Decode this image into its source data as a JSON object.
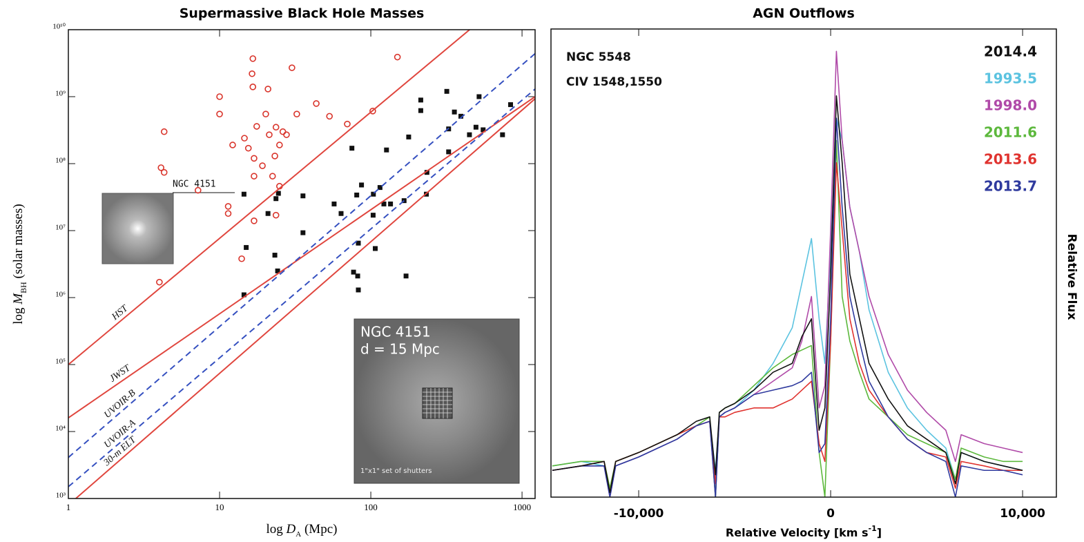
{
  "chart_data": [
    {
      "type": "scatter",
      "title": "Supermassive Black Hole Masses",
      "xlabel_parts": [
        "log ",
        "D",
        "A",
        " (Mpc)"
      ],
      "ylabel_parts": [
        "log ",
        "M",
        "BH",
        " (solar masses)"
      ],
      "xlog": true,
      "ylog": true,
      "xlim": [
        1,
        1220
      ],
      "ylim": [
        1000,
        10000000000.0
      ],
      "xticks": [
        1,
        10,
        100,
        1000
      ],
      "yticks": [
        {
          "value": 1000,
          "label": "10³"
        },
        {
          "value": 10000,
          "label": "10⁴"
        },
        {
          "value": 100000,
          "label": "10⁵"
        },
        {
          "value": 1000000,
          "label": "10⁶"
        },
        {
          "value": 10000000,
          "label": "10⁷"
        },
        {
          "value": 100000000,
          "label": "10⁸"
        },
        {
          "value": 1000000000,
          "label": "10⁹"
        },
        {
          "value": 10000000000,
          "label": "10¹⁰"
        }
      ],
      "series": [
        {
          "style": "points",
          "marker": "open-circle",
          "color": "#d9342b",
          "x": [
            4.3,
            4.1,
            4.3,
            4.0,
            7.2,
            10,
            10,
            11.4,
            11.4,
            12.2,
            14.6,
            14,
            15.5,
            16.6,
            16.4,
            16.6,
            17.6,
            16.9,
            16.9,
            16.9,
            19.2,
            20.2,
            20.9,
            21.3,
            22.4,
            23.2,
            23.6,
            24.9,
            26.2,
            27.7,
            23.6,
            24.9,
            30.1,
            32.4,
            43.6,
            53.3,
            69.9,
            103,
            150
          ],
          "values": [
            300000000.0,
            87000000.0,
            74000000.0,
            1700000.0,
            40000000.0,
            1000000000.0,
            550000000.0,
            23000000.0,
            18000000.0,
            190000000.0,
            240000000.0,
            3800000.0,
            170000000.0,
            3700000000.0,
            2200000000.0,
            1400000000.0,
            360000000.0,
            120000000.0,
            65000000.0,
            14000000.0,
            93000000.0,
            550000000.0,
            1300000000.0,
            270000000.0,
            65000000.0,
            130000000.0,
            350000000.0,
            190000000.0,
            300000000.0,
            270000000.0,
            17000000.0,
            46000000.0,
            2700000000.0,
            550000000.0,
            790000000.0,
            510000000.0,
            390000000.0,
            610000000.0,
            3900000000.0
          ]
        },
        {
          "style": "points",
          "marker": "square",
          "color": "#111111",
          "x": [
            14.5,
            15.0,
            14.5,
            20.9,
            23.2,
            23.6,
            24.5,
            24.2,
            35.6,
            35.6,
            57.2,
            63.6,
            76.9,
            75.0,
            80.7,
            86.8,
            81.9,
            82.7,
            82.7,
            103.6,
            104,
            107,
            115,
            122,
            127,
            135,
            166,
            171,
            178,
            214,
            214,
            233,
            235,
            318,
            327,
            327,
            357,
            394,
            449,
            496,
            520,
            553,
            743,
            840
          ],
          "values": [
            35000000.0,
            5600000.0,
            1100000.0,
            18000000.0,
            4300000.0,
            30000000.0,
            36000000.0,
            2500000.0,
            33000000.0,
            9300000.0,
            25000000.0,
            18000000.0,
            2400000.0,
            170000000.0,
            34000000.0,
            48000000.0,
            2100000.0,
            1300000.0,
            6500000.0,
            17000000.0,
            35000000.0,
            5400000.0,
            44000000.0,
            25000000.0,
            160000000.0,
            25000000.0,
            28000000.0,
            2100000.0,
            250000000.0,
            620000000.0,
            890000000.0,
            35000000.0,
            74000000.0,
            1200000000.0,
            330000000.0,
            150000000.0,
            590000000.0,
            510000000.0,
            270000000.0,
            350000000.0,
            1000000000.0,
            320000000.0,
            270000000.0,
            760000000.0
          ]
        },
        {
          "style": "line",
          "name": "HST",
          "color": "#e0463e",
          "dashed": false,
          "x": [
            1,
            450
          ],
          "values": [
            100000.0,
            10000000000.0
          ]
        },
        {
          "style": "line",
          "name": "JWST",
          "color": "#e0463e",
          "dashed": false,
          "x": [
            1,
            1220
          ],
          "values": [
            16000.0,
            1000000000.0
          ]
        },
        {
          "style": "line",
          "name": "UVOIR-B",
          "color": "#3550c0",
          "dashed": true,
          "x": [
            1,
            1220
          ],
          "values": [
            4100.0,
            4400000000.0
          ]
        },
        {
          "style": "line",
          "name": "UVOIR-A",
          "color": "#3550c0",
          "dashed": true,
          "x": [
            1,
            1220
          ],
          "values": [
            1500.0,
            1300000000.0
          ]
        },
        {
          "style": "line",
          "name": "30-m ELT",
          "color": "#e0463e",
          "dashed": false,
          "x": [
            1.12,
            1220
          ],
          "values": [
            1000.0,
            930000000.0
          ]
        }
      ],
      "annotations": [
        "NGC 4151",
        "NGC 4151",
        "d = 15 Mpc",
        "1\"x1\" set of shutters"
      ]
    },
    {
      "type": "line",
      "title": "AGN Outflows",
      "xlabel_parts": [
        "Relative Velocity [km s",
        "-1",
        "]"
      ],
      "ylabel": "Relative Flux",
      "xlog": false,
      "ylog": false,
      "xlim": [
        -14570,
        11760
      ],
      "ylim": [
        0,
        10.5
      ],
      "xticks": [
        {
          "value": -10000,
          "label": "-10,000"
        },
        0,
        {
          "value": 10000,
          "label": "10,000"
        }
      ],
      "x": [
        -14500,
        -13000,
        -11800,
        -11500,
        -11200,
        -10000,
        -8000,
        -7000,
        -6300,
        -6000,
        -5800,
        -5500,
        -5000,
        -4000,
        -3000,
        -2000,
        -1500,
        -1000,
        -600,
        -300,
        0,
        300,
        600,
        1000,
        1500,
        2000,
        3000,
        4000,
        5000,
        6000,
        6500,
        6800,
        8000,
        9000,
        10000
      ],
      "series": [
        {
          "name": "1993.5",
          "color": "#5bc3e0",
          "values": [
            0.7,
            0.8,
            0.7,
            0.2,
            0.7,
            0.9,
            1.3,
            1.6,
            1.7,
            0.6,
            1.8,
            1.9,
            2.0,
            2.4,
            3.0,
            3.8,
            4.8,
            5.8,
            4.0,
            3.0,
            5.5,
            8.5,
            8.0,
            6.5,
            5.5,
            4.2,
            2.8,
            2.0,
            1.5,
            1.1,
            0.4,
            1.0,
            0.8,
            0.7,
            0.6
          ]
        },
        {
          "name": "1998.0",
          "color": "#b04aa8",
          "values": [
            0.6,
            0.7,
            0.7,
            0.0,
            0.7,
            0.9,
            1.3,
            1.6,
            1.7,
            0.0,
            1.8,
            1.9,
            2.0,
            2.3,
            2.6,
            2.9,
            3.5,
            4.5,
            2.0,
            2.5,
            6.0,
            10.0,
            8.0,
            6.5,
            5.5,
            4.5,
            3.2,
            2.4,
            1.9,
            1.5,
            0.8,
            1.4,
            1.2,
            1.1,
            1.0
          ]
        },
        {
          "name": "2011.6",
          "color": "#5cb83c",
          "values": [
            0.7,
            0.8,
            0.8,
            0.2,
            0.8,
            1.0,
            1.4,
            1.6,
            1.8,
            0.0,
            1.9,
            2.0,
            2.1,
            2.5,
            2.9,
            3.2,
            3.3,
            3.4,
            1.0,
            0.0,
            3.5,
            8.0,
            4.5,
            3.5,
            2.8,
            2.2,
            1.8,
            1.4,
            1.2,
            1.0,
            0.4,
            1.1,
            0.9,
            0.8,
            0.8
          ]
        },
        {
          "name": "2013.6",
          "color": "#e0332f",
          "values": [
            0.6,
            0.7,
            0.8,
            0.1,
            0.8,
            1.0,
            1.4,
            1.6,
            1.7,
            0.3,
            1.8,
            1.8,
            1.9,
            2.0,
            2.0,
            2.2,
            2.4,
            2.6,
            1.2,
            0.8,
            3.5,
            7.5,
            6.0,
            4.0,
            3.0,
            2.4,
            1.8,
            1.3,
            1.0,
            0.9,
            0.2,
            0.8,
            0.7,
            0.6,
            0.6
          ]
        },
        {
          "name": "2013.7",
          "color": "#2f3a9e",
          "values": [
            0.6,
            0.7,
            0.7,
            0.0,
            0.7,
            0.9,
            1.3,
            1.6,
            1.7,
            0.0,
            1.8,
            1.9,
            2.0,
            2.3,
            2.4,
            2.5,
            2.6,
            2.8,
            1.0,
            1.2,
            4.0,
            8.5,
            6.5,
            4.5,
            3.5,
            2.6,
            1.8,
            1.3,
            1.0,
            0.8,
            0.0,
            0.7,
            0.6,
            0.6,
            0.5
          ]
        },
        {
          "name": "2014.4",
          "color": "#111111",
          "values": [
            0.6,
            0.7,
            0.8,
            0.1,
            0.8,
            1.0,
            1.4,
            1.7,
            1.8,
            0.5,
            1.9,
            2.0,
            2.1,
            2.4,
            2.8,
            3.0,
            3.6,
            4.0,
            1.5,
            2.0,
            5.0,
            9.0,
            7.5,
            5.0,
            4.0,
            3.0,
            2.2,
            1.6,
            1.3,
            1.0,
            0.3,
            1.0,
            0.8,
            0.7,
            0.6
          ]
        }
      ],
      "legend_order": [
        5,
        0,
        1,
        2,
        3,
        4
      ],
      "annotations": [
        "NGC 5548",
        "CIV 1548,1550"
      ]
    }
  ]
}
